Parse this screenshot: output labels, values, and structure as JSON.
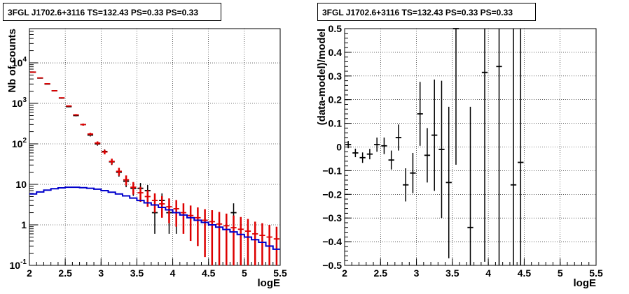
{
  "chart_data": [
    {
      "type": "line",
      "title": "3FGL J1702.6+3116 TS=132.43 PS=0.33 PS=0.33",
      "xlabel": "logE",
      "ylabel": "Nb of counts",
      "xlim": [
        2,
        5.5
      ],
      "ylim": [
        0.1,
        70000
      ],
      "yscale": "log",
      "grid": true,
      "x_ticks": [
        "2",
        "2.5",
        "3",
        "3.5",
        "4",
        "4.5",
        "5",
        "5.5"
      ],
      "y_ticks": [
        "10^-1",
        "1",
        "10",
        "10^2",
        "10^3",
        "10^4"
      ],
      "series": [
        {
          "color": "#000000",
          "style": "data points with error bars",
          "x": [
            2.05,
            2.15,
            2.25,
            2.35,
            2.45,
            2.55,
            2.65,
            2.75,
            2.85,
            2.95,
            3.05,
            3.15,
            3.25,
            3.35,
            3.45,
            3.55,
            3.65,
            3.75,
            3.85,
            3.95,
            4.05,
            4.85
          ],
          "y": [
            5900,
            4200,
            3000,
            2050,
            1350,
            830,
            500,
            300,
            165,
            100,
            65,
            36,
            20,
            12,
            8,
            8,
            7,
            2,
            4,
            2,
            2,
            2
          ],
          "yerr_low": [
            100,
            80,
            60,
            50,
            40,
            30,
            22,
            17,
            13,
            10,
            8,
            6,
            4.5,
            3.5,
            2.8,
            2.8,
            2.6,
            1.4,
            2,
            1.4,
            1.4,
            1.4
          ],
          "yerr_high": [
            100,
            80,
            60,
            50,
            40,
            30,
            22,
            17,
            13,
            10,
            8,
            6,
            4.5,
            3.5,
            2.8,
            2.8,
            2.6,
            1.4,
            2,
            1.4,
            1.4,
            1.4
          ]
        },
        {
          "color": "#dd0000",
          "style": "model with error bars",
          "x": [
            2.05,
            2.15,
            2.25,
            2.35,
            2.45,
            2.55,
            2.65,
            2.75,
            2.85,
            2.95,
            3.05,
            3.15,
            3.25,
            3.35,
            3.45,
            3.55,
            3.65,
            3.75,
            3.85,
            3.95,
            4.05,
            4.15,
            4.25,
            4.35,
            4.45,
            4.55,
            4.65,
            4.75,
            4.85,
            4.95,
            5.05,
            5.15,
            5.25,
            5.35,
            5.45
          ],
          "y": [
            5900,
            4250,
            3050,
            2050,
            1370,
            860,
            520,
            300,
            175,
            105,
            63,
            37,
            21,
            13,
            8.5,
            6.2,
            5,
            4,
            3.3,
            2.8,
            2.5,
            2.0,
            1.7,
            1.5,
            1.3,
            1.2,
            1.05,
            0.95,
            0.85,
            0.78,
            0.7,
            0.6,
            0.55,
            0.5,
            0.45
          ],
          "yerr_low": [
            75,
            65,
            55,
            45,
            37,
            29,
            23,
            17,
            13,
            10,
            8,
            6,
            4.6,
            3.6,
            2.9,
            2.5,
            2.2,
            2.0,
            1.8,
            1.7,
            1.6,
            1.4,
            1.3,
            1.2,
            1.14,
            1.1,
            1.03,
            0.95,
            0.85,
            0.78,
            0.7,
            0.6,
            0.55,
            0.5,
            0.45
          ],
          "yerr_high": [
            75,
            65,
            55,
            45,
            37,
            29,
            23,
            17,
            13,
            10,
            8,
            6,
            4.6,
            3.6,
            2.9,
            2.5,
            2.2,
            2.0,
            1.8,
            1.7,
            1.6,
            1.4,
            1.3,
            1.2,
            1.14,
            1.1,
            1.03,
            0.95,
            0.85,
            0.78,
            0.7,
            0.6,
            0.55,
            0.5,
            0.45
          ]
        },
        {
          "color": "#0000cc",
          "style": "step histogram",
          "x": [
            2.05,
            2.15,
            2.25,
            2.35,
            2.45,
            2.55,
            2.65,
            2.75,
            2.85,
            2.95,
            3.05,
            3.15,
            3.25,
            3.35,
            3.45,
            3.55,
            3.65,
            3.75,
            3.85,
            3.95,
            4.05,
            4.15,
            4.25,
            4.35,
            4.45,
            4.55,
            4.65,
            4.75,
            4.85,
            4.95,
            5.05,
            5.15,
            5.25,
            5.35,
            5.45
          ],
          "y": [
            5.8,
            6.5,
            7.2,
            7.8,
            8.2,
            8.5,
            8.5,
            8.3,
            8.0,
            7.6,
            7.0,
            6.4,
            5.8,
            5.2,
            4.6,
            4.0,
            3.5,
            3.1,
            2.7,
            2.35,
            2.0,
            1.75,
            1.5,
            1.3,
            1.15,
            1.0,
            0.88,
            0.77,
            0.67,
            0.58,
            0.5,
            0.43,
            0.37,
            0.3,
            0.25
          ]
        }
      ]
    },
    {
      "type": "scatter",
      "title": "3FGL J1702.6+3116 TS=132.43 PS=0.33 PS=0.33",
      "xlabel": "logE",
      "ylabel": "(data-model)/model",
      "xlim": [
        2,
        5.5
      ],
      "ylim": [
        -0.5,
        0.5
      ],
      "grid": true,
      "x_ticks": [
        "2",
        "2.5",
        "3",
        "3.5",
        "4",
        "4.5",
        "5",
        "5.5"
      ],
      "y_ticks": [
        "−0.5",
        "−0.4",
        "−0.3",
        "−0.2",
        "−0.1",
        "0",
        "0.1",
        "0.2",
        "0.3",
        "0.4",
        "0.5"
      ],
      "series": [
        {
          "color": "#000000",
          "x": [
            2.05,
            2.15,
            2.25,
            2.35,
            2.45,
            2.55,
            2.65,
            2.75,
            2.85,
            2.95,
            3.05,
            3.15,
            3.25,
            3.35,
            3.45,
            3.55,
            3.75,
            3.95,
            4.15,
            4.35,
            4.45
          ],
          "y": [
            0.01,
            -0.025,
            -0.045,
            -0.03,
            0.01,
            0.005,
            -0.055,
            0.04,
            -0.16,
            -0.11,
            0.14,
            -0.035,
            0.05,
            -0.01,
            -0.15,
            0.5,
            -0.34,
            0.315,
            0.34,
            -0.16,
            -0.065
          ],
          "err": [
            0.015,
            0.018,
            0.022,
            0.022,
            0.03,
            0.035,
            0.04,
            0.055,
            0.07,
            0.085,
            0.135,
            0.115,
            0.235,
            0.29,
            0.32,
            0.575,
            0.51,
            0.8,
            0.9,
            0.9,
            0.75
          ]
        }
      ]
    }
  ]
}
